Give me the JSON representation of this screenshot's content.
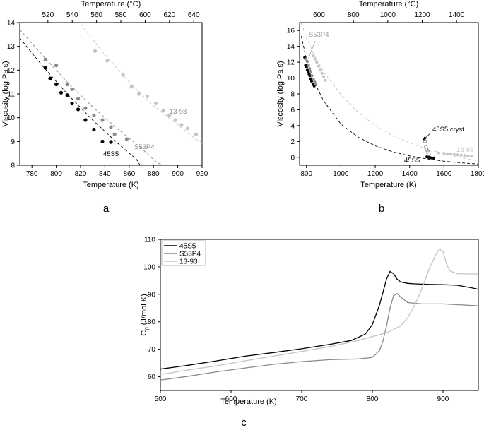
{
  "figure": {
    "panel_labels": [
      "a",
      "b",
      "c"
    ],
    "colors": {
      "s45S5": "#000000",
      "sS53P4": "#8a8a8a",
      "s1393": "#c4c4c4",
      "axis": "#000000"
    }
  },
  "chart_data": [
    {
      "id": "a",
      "type": "scatter",
      "xlabel": "Temperature (K)",
      "ylabel": "Viscosity (log Pa s)",
      "x2label": "Temperature (°C)",
      "xlim": [
        770,
        920
      ],
      "ylim": [
        8,
        14
      ],
      "xticks": [
        780,
        800,
        820,
        840,
        860,
        880,
        900,
        920
      ],
      "yticks": [
        8,
        9,
        10,
        11,
        12,
        13,
        14
      ],
      "x2ticks": [
        520,
        540,
        560,
        580,
        600,
        620,
        640
      ],
      "series": [
        {
          "name": "45S5",
          "color": "#000000",
          "points": [
            [
              791,
              12.1
            ],
            [
              795,
              11.65
            ],
            [
              800,
              11.4
            ],
            [
              804,
              11.05
            ],
            [
              809,
              10.95
            ],
            [
              813,
              10.6
            ],
            [
              818,
              10.35
            ],
            [
              824,
              9.9
            ],
            [
              831,
              9.5
            ],
            [
              838,
              9.0
            ],
            [
              845,
              8.98
            ]
          ],
          "fit": [
            [
              770,
              13.35
            ],
            [
              790,
              12.1
            ],
            [
              810,
              10.95
            ],
            [
              830,
              9.9
            ],
            [
              850,
              8.95
            ],
            [
              866,
              8.25
            ],
            [
              869,
              8.0
            ]
          ]
        },
        {
          "name": "S53P4",
          "color": "#8a8a8a",
          "points": [
            [
              791,
              12.45
            ],
            [
              800,
              12.2
            ],
            [
              809,
              11.4
            ],
            [
              813,
              11.2
            ],
            [
              818,
              10.8
            ],
            [
              824,
              10.4
            ],
            [
              831,
              10.1
            ],
            [
              838,
              9.9
            ],
            [
              845,
              9.6
            ],
            [
              848,
              9.3
            ],
            [
              858,
              9.1
            ]
          ],
          "fit": [
            [
              770,
              13.7
            ],
            [
              790,
              12.55
            ],
            [
              810,
              11.45
            ],
            [
              830,
              10.45
            ],
            [
              850,
              9.55
            ],
            [
              870,
              8.72
            ],
            [
              882,
              8.15
            ],
            [
              887,
              8.0
            ]
          ]
        },
        {
          "name": "13-93",
          "color": "#c4c4c4",
          "points": [
            [
              832,
              12.8
            ],
            [
              842,
              12.4
            ],
            [
              855,
              11.8
            ],
            [
              862,
              11.3
            ],
            [
              868,
              11.0
            ],
            [
              875,
              10.9
            ],
            [
              882,
              10.6
            ],
            [
              888,
              10.3
            ],
            [
              893,
              10.1
            ],
            [
              898,
              9.9
            ],
            [
              903,
              9.7
            ],
            [
              908,
              9.55
            ],
            [
              915,
              9.3
            ]
          ],
          "fit": [
            [
              820,
              13.95
            ],
            [
              840,
              12.65
            ],
            [
              860,
              11.5
            ],
            [
              880,
              10.5
            ],
            [
              900,
              9.7
            ],
            [
              915,
              9.1
            ],
            [
              920,
              8.95
            ]
          ]
        }
      ],
      "annotations": [
        {
          "text": "13-93",
          "color": "#8a8a8a"
        },
        {
          "text": "S53P4",
          "color": "#8a8a8a"
        },
        {
          "text": "45S5",
          "color": "#000000"
        }
      ]
    },
    {
      "id": "b",
      "type": "scatter",
      "xlabel": "Temperature (K)",
      "ylabel": "Viscosity (log Pa s)",
      "x2label": "Temperature (°C)",
      "xlim": [
        760,
        1800
      ],
      "ylim": [
        -1,
        17
      ],
      "xticks": [
        800,
        1000,
        1200,
        1400,
        1600,
        1800
      ],
      "yticks": [
        0,
        2,
        4,
        6,
        8,
        10,
        12,
        14,
        16
      ],
      "x2ticks": [
        600,
        800,
        1000,
        1200,
        1400
      ],
      "series": [
        {
          "name": "45S5",
          "color": "#000000",
          "points": [
            [
              790,
              12.6
            ],
            [
              795,
              11.6
            ],
            [
              800,
              11.4
            ],
            [
              805,
              11.0
            ],
            [
              810,
              10.8
            ],
            [
              815,
              10.5
            ],
            [
              820,
              10.3
            ],
            [
              825,
              9.9
            ],
            [
              830,
              9.6
            ],
            [
              838,
              9.2
            ],
            [
              845,
              9.0
            ],
            [
              1500,
              0.05
            ],
            [
              1510,
              0.0
            ],
            [
              1520,
              -0.05
            ],
            [
              1530,
              -0.08
            ],
            [
              1540,
              -0.1
            ]
          ],
          "fit": [
            [
              770,
              15.3
            ],
            [
              800,
              12.4
            ],
            [
              850,
              9.3
            ],
            [
              900,
              7.1
            ],
            [
              1000,
              4.2
            ],
            [
              1100,
              2.55
            ],
            [
              1200,
              1.45
            ],
            [
              1300,
              0.7
            ],
            [
              1400,
              0.18
            ],
            [
              1500,
              -0.2
            ],
            [
              1600,
              -0.48
            ],
            [
              1700,
              -0.7
            ],
            [
              1800,
              -0.85
            ]
          ]
        },
        {
          "name": "S53P4",
          "color": "#8a8a8a",
          "points": [
            [
              795,
              12.4
            ],
            [
              805,
              12.1
            ],
            [
              812,
              11.6
            ],
            [
              818,
              11.2
            ],
            [
              825,
              10.8
            ],
            [
              832,
              10.3
            ],
            [
              840,
              9.8
            ],
            [
              848,
              9.5
            ],
            [
              855,
              9.2
            ]
          ],
          "fit": []
        },
        {
          "name": "13-93",
          "color": "#c4c4c4",
          "points": [
            [
              840,
              12.8
            ],
            [
              850,
              12.4
            ],
            [
              860,
              12.0
            ],
            [
              870,
              11.5
            ],
            [
              880,
              11.0
            ],
            [
              890,
              10.6
            ],
            [
              900,
              10.2
            ],
            [
              910,
              9.7
            ],
            [
              1570,
              0.55
            ],
            [
              1600,
              0.5
            ],
            [
              1620,
              0.45
            ],
            [
              1640,
              0.4
            ],
            [
              1660,
              0.35
            ],
            [
              1680,
              0.3
            ],
            [
              1700,
              0.27
            ],
            [
              1720,
              0.22
            ],
            [
              1740,
              0.18
            ],
            [
              1760,
              0.15
            ]
          ],
          "fit": [
            [
              770,
              16.9
            ],
            [
              800,
              15.1
            ],
            [
              850,
              12.7
            ],
            [
              900,
              10.8
            ],
            [
              1000,
              7.9
            ],
            [
              1100,
              5.7
            ],
            [
              1200,
              4.0
            ],
            [
              1300,
              2.75
            ],
            [
              1400,
              1.8
            ],
            [
              1500,
              1.05
            ],
            [
              1600,
              0.45
            ],
            [
              1700,
              -0.05
            ],
            [
              1800,
              -0.45
            ]
          ]
        },
        {
          "name": "45S5 cryst.",
          "color": "#707070",
          "hollow": true,
          "points": [
            [
              1490,
              2.0
            ],
            [
              1495,
              1.3
            ],
            [
              1500,
              1.0
            ],
            [
              1505,
              0.8
            ],
            [
              1510,
              0.6
            ],
            [
              1512,
              0.4
            ]
          ],
          "fit": []
        }
      ],
      "annotations": [
        {
          "text": "S53P4",
          "color": "#a0a0a0"
        },
        {
          "text": "45S5 cryst.",
          "color": "#000000"
        },
        {
          "text": "13-93",
          "color": "#c4c4c4"
        },
        {
          "text": "45S5",
          "color": "#000000"
        }
      ]
    },
    {
      "id": "c",
      "type": "line",
      "xlabel": "Temperature (K)",
      "ylabel": "Cp (J/mol K)",
      "xlim": [
        500,
        950
      ],
      "ylim": [
        55,
        110
      ],
      "xticks": [
        500,
        600,
        700,
        800,
        900
      ],
      "yticks": [
        60,
        70,
        80,
        90,
        100,
        110
      ],
      "legend_position": "top-left",
      "series": [
        {
          "name": "45S5",
          "color": "#000000",
          "x": [
            500,
            540,
            580,
            620,
            660,
            700,
            740,
            770,
            790,
            800,
            810,
            820,
            825,
            830,
            835,
            840,
            850,
            860,
            880,
            900,
            920,
            940,
            950
          ],
          "values": [
            62.8,
            64.2,
            65.8,
            67.5,
            68.8,
            70.2,
            71.8,
            73.2,
            75.5,
            79.0,
            86.0,
            95.5,
            98.3,
            97.5,
            95.5,
            94.5,
            94.0,
            93.8,
            93.6,
            93.5,
            93.3,
            92.4,
            91.8
          ]
        },
        {
          "name": "S53P4",
          "color": "#8a8a8a",
          "x": [
            500,
            540,
            580,
            620,
            660,
            700,
            740,
            780,
            800,
            810,
            815,
            820,
            825,
            830,
            835,
            840,
            850,
            870,
            900,
            930,
            950
          ],
          "values": [
            58.8,
            60.2,
            61.8,
            63.2,
            64.5,
            65.5,
            66.2,
            66.5,
            67.0,
            69.5,
            73.0,
            78.5,
            85.0,
            89.5,
            90.3,
            89.0,
            87.0,
            86.5,
            86.5,
            86.1,
            85.8
          ]
        },
        {
          "name": "13-93",
          "color": "#c4c4c4",
          "x": [
            500,
            540,
            580,
            620,
            660,
            700,
            740,
            780,
            820,
            840,
            850,
            860,
            870,
            880,
            890,
            895,
            900,
            905,
            910,
            920,
            935,
            950
          ],
          "values": [
            60.8,
            62.5,
            64.0,
            65.8,
            67.5,
            69.2,
            71.0,
            73.2,
            76.0,
            78.5,
            81.5,
            86.0,
            92.0,
            99.0,
            104.5,
            106.5,
            105.5,
            101.0,
            98.5,
            97.5,
            97.4,
            97.4
          ]
        }
      ]
    }
  ]
}
